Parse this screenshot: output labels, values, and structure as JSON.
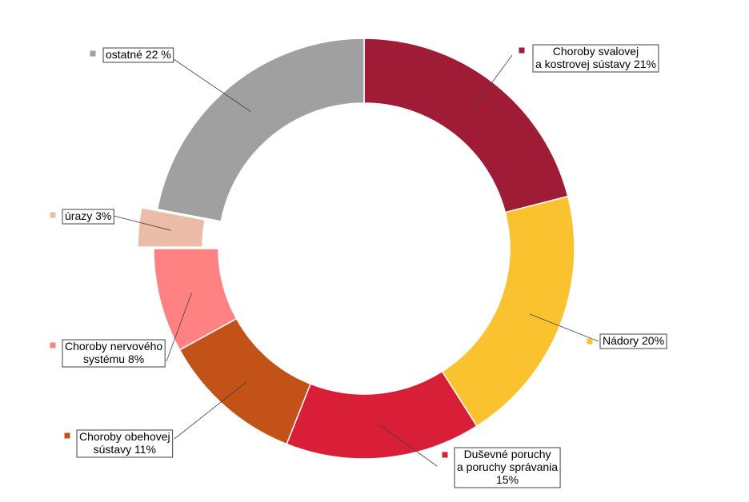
{
  "chart_data": {
    "type": "pie",
    "variant": "donut",
    "title": "",
    "slices": [
      {
        "key": "svalove",
        "label": "Choroby svalovej a kostrovej sústavy 21%",
        "label_lines": [
          "Choroby svalovej",
          "a kostrovej sústavy 21%"
        ],
        "value": 21,
        "color": "#A01B35"
      },
      {
        "key": "nadory",
        "label": "Nádory 20%",
        "label_lines": [
          "Nádory 20%"
        ],
        "value": 20,
        "color": "#FBC22F"
      },
      {
        "key": "dusevne",
        "label": "Duševné poruchy a poruchy správania 15%",
        "label_lines": [
          "Duševné poruchy",
          "a poruchy správania",
          "15%"
        ],
        "value": 15,
        "color": "#D91F37"
      },
      {
        "key": "obehove",
        "label": "Choroby obehovej sústavy 11%",
        "label_lines": [
          "Choroby obehovej",
          "sústavy 11%"
        ],
        "value": 11,
        "color": "#C35219"
      },
      {
        "key": "nervove",
        "label": "Choroby nervového systému 8%",
        "label_lines": [
          "Choroby nervového",
          "systému 8%"
        ],
        "value": 8,
        "color": "#FF8282"
      },
      {
        "key": "urazy",
        "label": "úrazy 3%",
        "label_lines": [
          "úrazy 3%"
        ],
        "value": 3,
        "color": "#EBBDA9",
        "exploded": true
      },
      {
        "key": "ostatne",
        "label": "ostatné 22 %",
        "label_lines": [
          "ostatné 22 %"
        ],
        "value": 22,
        "color": "#A0A0A0"
      }
    ]
  }
}
